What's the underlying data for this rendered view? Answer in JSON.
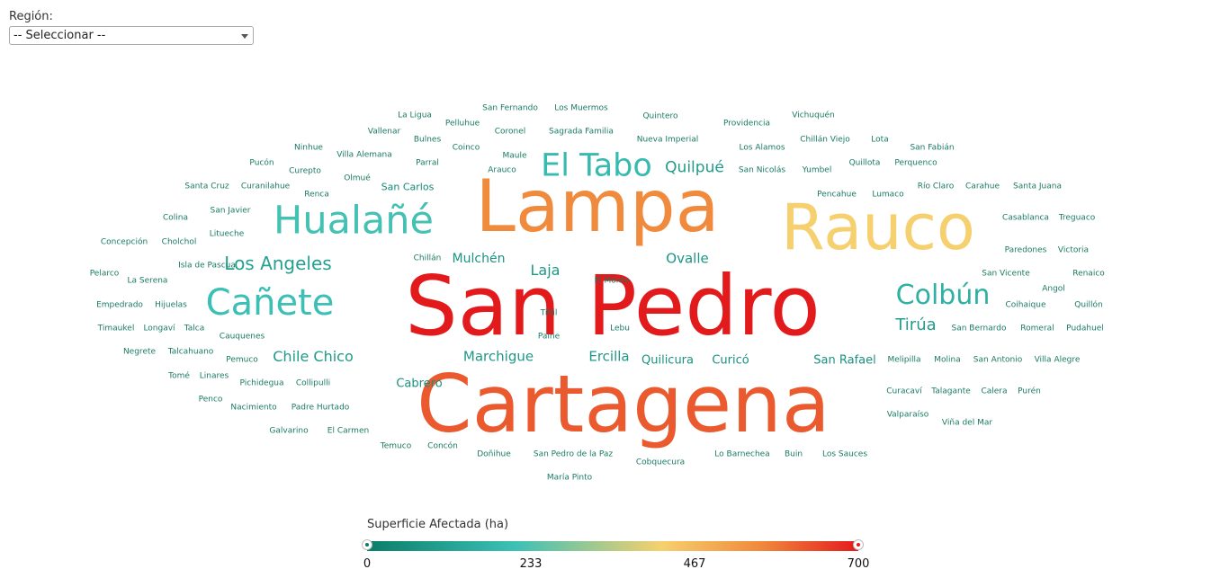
{
  "filter": {
    "label": "Región:",
    "selected": "-- Seleccionar --"
  },
  "legend": {
    "title": "Superficie Afectada (ha)",
    "ticks": [
      "0",
      "233",
      "467",
      "700"
    ],
    "min": 0,
    "max": 700,
    "colors": {
      "low": "#0a7d68",
      "mid_low": "#3cc0b6",
      "mid": "#f6d06e",
      "mid_high": "#f08a3c",
      "high": "#e31a1c"
    }
  },
  "chart_data": {
    "type": "wordcloud",
    "title": "",
    "value_label": "Superficie Afectada (ha)",
    "words": [
      {
        "text": "San Pedro",
        "value": 700
      },
      {
        "text": "Cartagena",
        "value": 620
      },
      {
        "text": "Lampa",
        "value": 560
      },
      {
        "text": "Rauco",
        "value": 420
      },
      {
        "text": "Hualañé",
        "value": 220
      },
      {
        "text": "Cañete",
        "value": 210
      },
      {
        "text": "El Tabo",
        "value": 190
      },
      {
        "text": "Colbún",
        "value": 160
      },
      {
        "text": "Los Angeles",
        "value": 110
      },
      {
        "text": "Tirúa",
        "value": 100
      },
      {
        "text": "Quilpué",
        "value": 95
      },
      {
        "text": "Chile Chico",
        "value": 90
      },
      {
        "text": "Marchigue",
        "value": 85
      },
      {
        "text": "Ercilla",
        "value": 82
      },
      {
        "text": "Laja",
        "value": 80
      },
      {
        "text": "Ovalle",
        "value": 75
      },
      {
        "text": "Mulchén",
        "value": 70
      },
      {
        "text": "Quilicura",
        "value": 68
      },
      {
        "text": "San Rafael",
        "value": 66
      },
      {
        "text": "Curicó",
        "value": 62
      },
      {
        "text": "Cabrero",
        "value": 60
      },
      {
        "text": "San Carlos",
        "value": 40
      },
      {
        "text": "La Ligua",
        "value": 10
      },
      {
        "text": "San Fernando",
        "value": 10
      },
      {
        "text": "Los Muermos",
        "value": 10
      },
      {
        "text": "Pelluhue",
        "value": 10
      },
      {
        "text": "Quintero",
        "value": 10
      },
      {
        "text": "Vichuquén",
        "value": 10
      },
      {
        "text": "Vallenar",
        "value": 10
      },
      {
        "text": "Coronel",
        "value": 10
      },
      {
        "text": "Sagrada Familia",
        "value": 10
      },
      {
        "text": "Providencia",
        "value": 10
      },
      {
        "text": "Bulnes",
        "value": 10
      },
      {
        "text": "Nueva Imperial",
        "value": 10
      },
      {
        "text": "Chillán Viejo",
        "value": 10
      },
      {
        "text": "Lota",
        "value": 10
      },
      {
        "text": "Ninhue",
        "value": 10
      },
      {
        "text": "Coinco",
        "value": 10
      },
      {
        "text": "Los Alamos",
        "value": 10
      },
      {
        "text": "San Fabián",
        "value": 10
      },
      {
        "text": "Villa Alemana",
        "value": 10
      },
      {
        "text": "Maule",
        "value": 10
      },
      {
        "text": "Pucón",
        "value": 10
      },
      {
        "text": "Parral",
        "value": 10
      },
      {
        "text": "Quillota",
        "value": 10
      },
      {
        "text": "Perquenco",
        "value": 10
      },
      {
        "text": "Curepto",
        "value": 10
      },
      {
        "text": "Arauco",
        "value": 10
      },
      {
        "text": "San Nicolás",
        "value": 10
      },
      {
        "text": "Yumbel",
        "value": 10
      },
      {
        "text": "Olmué",
        "value": 10
      },
      {
        "text": "Santa Cruz",
        "value": 10
      },
      {
        "text": "Curanilahue",
        "value": 10
      },
      {
        "text": "Río Claro",
        "value": 10
      },
      {
        "text": "Carahue",
        "value": 10
      },
      {
        "text": "Santa Juana",
        "value": 10
      },
      {
        "text": "Renca",
        "value": 10
      },
      {
        "text": "Pencahue",
        "value": 10
      },
      {
        "text": "Lumaco",
        "value": 10
      },
      {
        "text": "San Javier",
        "value": 10
      },
      {
        "text": "Colina",
        "value": 10
      },
      {
        "text": "Casablanca",
        "value": 10
      },
      {
        "text": "Treguaco",
        "value": 10
      },
      {
        "text": "Litueche",
        "value": 10
      },
      {
        "text": "Concepción",
        "value": 10
      },
      {
        "text": "Cholchol",
        "value": 10
      },
      {
        "text": "Paredones",
        "value": 10
      },
      {
        "text": "Victoria",
        "value": 10
      },
      {
        "text": "Chillán",
        "value": 10
      },
      {
        "text": "Isla de Pascua",
        "value": 10
      },
      {
        "text": "Pelarco",
        "value": 10
      },
      {
        "text": "San Vicente",
        "value": 10
      },
      {
        "text": "Renaico",
        "value": 10
      },
      {
        "text": "La Serena",
        "value": 10
      },
      {
        "text": "El Monte",
        "value": 10
      },
      {
        "text": "Angol",
        "value": 10
      },
      {
        "text": "Empedrado",
        "value": 10
      },
      {
        "text": "Hijuelas",
        "value": 10
      },
      {
        "text": "Coihaique",
        "value": 10
      },
      {
        "text": "Quillón",
        "value": 10
      },
      {
        "text": "Tiltil",
        "value": 10
      },
      {
        "text": "Timaukel",
        "value": 10
      },
      {
        "text": "Longaví",
        "value": 10
      },
      {
        "text": "Talca",
        "value": 10
      },
      {
        "text": "Lebu",
        "value": 10
      },
      {
        "text": "San Bernardo",
        "value": 10
      },
      {
        "text": "Romeral",
        "value": 10
      },
      {
        "text": "Pudahuel",
        "value": 10
      },
      {
        "text": "Cauquenes",
        "value": 10
      },
      {
        "text": "Paine",
        "value": 10
      },
      {
        "text": "Negrete",
        "value": 10
      },
      {
        "text": "Talcahuano",
        "value": 10
      },
      {
        "text": "Pemuco",
        "value": 10
      },
      {
        "text": "Melipilla",
        "value": 10
      },
      {
        "text": "Molina",
        "value": 10
      },
      {
        "text": "San Antonio",
        "value": 10
      },
      {
        "text": "Villa Alegre",
        "value": 10
      },
      {
        "text": "Tomé",
        "value": 10
      },
      {
        "text": "Linares",
        "value": 10
      },
      {
        "text": "Pichidegua",
        "value": 10
      },
      {
        "text": "Collipulli",
        "value": 10
      },
      {
        "text": "Curacaví",
        "value": 10
      },
      {
        "text": "Talagante",
        "value": 10
      },
      {
        "text": "Calera",
        "value": 10
      },
      {
        "text": "Purén",
        "value": 10
      },
      {
        "text": "Penco",
        "value": 10
      },
      {
        "text": "Nacimiento",
        "value": 10
      },
      {
        "text": "Padre Hurtado",
        "value": 10
      },
      {
        "text": "Valparaíso",
        "value": 10
      },
      {
        "text": "Viña del Mar",
        "value": 10
      },
      {
        "text": "Galvarino",
        "value": 10
      },
      {
        "text": "El Carmen",
        "value": 10
      },
      {
        "text": "Temuco",
        "value": 10
      },
      {
        "text": "Concón",
        "value": 10
      },
      {
        "text": "Doñihue",
        "value": 10
      },
      {
        "text": "San Pedro de la Paz",
        "value": 10
      },
      {
        "text": "Lo Barnechea",
        "value": 10
      },
      {
        "text": "Buin",
        "value": 10
      },
      {
        "text": "Los Sauces",
        "value": 10
      },
      {
        "text": "Cobquecura",
        "value": 10
      },
      {
        "text": "María Pinto",
        "value": 10
      }
    ]
  }
}
